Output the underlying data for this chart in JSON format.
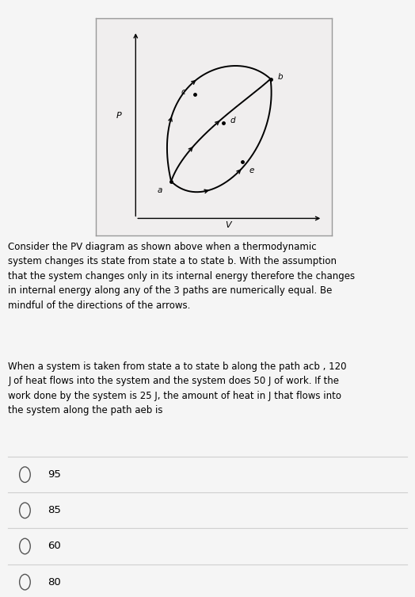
{
  "bg_color": "#f5f5f5",
  "diagram_bg": "#f0eeee",
  "text_color": "#000000",
  "desc_text": "Consider the PV diagram as shown above when a thermodynamic\nsystem changes its state from state a to state b. With the assumption\nthat the system changes only in its internal energy therefore the changes\nin internal energy along any of the 3 paths are numerically equal. Be\nmindful of the directions of the arrows.",
  "question_text": "When a system is taken from state a to state b along the path acb , 120\nJ of heat flows into the system and the system does 50 J of work. If the\nwork done by the system is 25 J, the amount of heat in J that flows into\nthe system along the path aeb is",
  "choices": [
    "95",
    "85",
    "60",
    "80"
  ],
  "xlabel": "V",
  "ylabel": "P",
  "point_a": [
    0.32,
    0.25
  ],
  "point_b": [
    0.74,
    0.72
  ],
  "point_c": [
    0.42,
    0.65
  ],
  "point_d": [
    0.54,
    0.52
  ],
  "point_e": [
    0.62,
    0.34
  ],
  "cp1_upper": [
    0.22,
    0.72
  ],
  "cp2_upper": [
    0.58,
    0.88
  ],
  "cp1_lower": [
    0.48,
    0.08
  ],
  "cp2_lower": [
    0.78,
    0.38
  ],
  "cp1_mid": [
    0.38,
    0.44
  ],
  "cp2_mid": [
    0.64,
    0.62
  ]
}
